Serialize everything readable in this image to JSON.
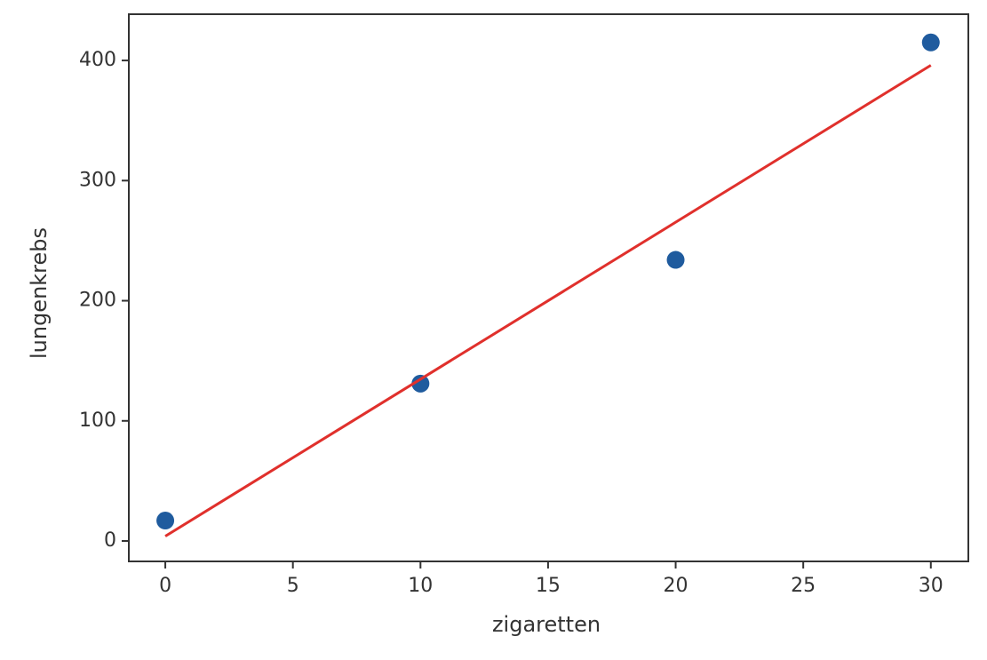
{
  "chart_data": {
    "type": "scatter",
    "xlabel": "zigaretten",
    "ylabel": "lungenkrebs",
    "xlim": [
      -1.43,
      31.47
    ],
    "ylim": [
      -17,
      438.5
    ],
    "xticks": [
      0,
      5,
      10,
      15,
      20,
      25,
      30
    ],
    "yticks": [
      0,
      100,
      200,
      300,
      400
    ],
    "series": [
      {
        "type": "scatter",
        "color": "#1f5b9e",
        "x": [
          0,
          10,
          20,
          30
        ],
        "values": [
          17,
          131,
          234,
          415
        ]
      },
      {
        "type": "line",
        "color": "#e0302c",
        "x": [
          0,
          30
        ],
        "values": [
          4,
          396
        ]
      }
    ]
  }
}
